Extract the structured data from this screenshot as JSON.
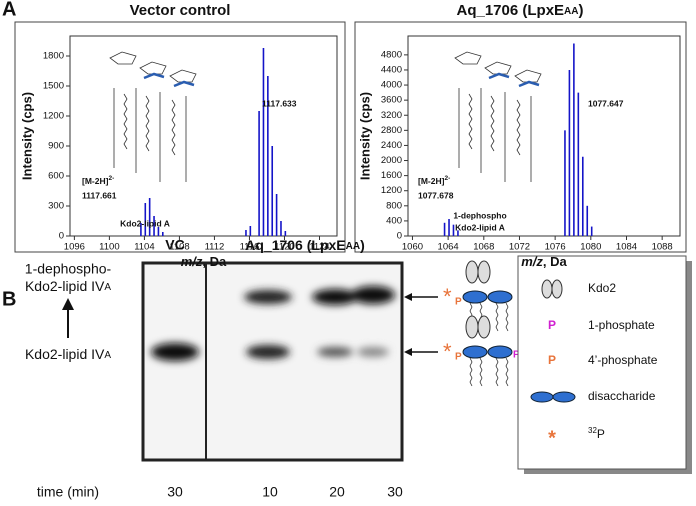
{
  "panels": [
    "A",
    "B"
  ],
  "chart_data": [
    {
      "type": "stick",
      "title": [
        "Vector control"
      ],
      "color": "#1414c8",
      "x": [
        1103.6,
        1104.1,
        1104.6,
        1105.1,
        1105.6,
        1106.1,
        1115.6,
        1116.1,
        1117.1,
        1117.6,
        1118.1,
        1118.6,
        1119.1,
        1119.6,
        1120.1
      ],
      "values": [
        130,
        330,
        380,
        200,
        90,
        40,
        60,
        100,
        1250,
        1880,
        1600,
        900,
        420,
        150,
        50
      ],
      "xlim": [
        1095.5,
        1126
      ],
      "ylim": [
        0,
        2000
      ],
      "xticks": [
        1096,
        1100,
        1104,
        1108,
        1112,
        1116,
        1120,
        1124
      ],
      "yticks": [
        0,
        300,
        600,
        900,
        1200,
        1500,
        1800
      ],
      "ylabel": "Intensity (cps)",
      "xlabel": [
        "m/z",
        ", Da"
      ],
      "annotations": [
        "1117.633",
        "[M-2H]",
        "2-",
        "1117.661",
        "Kdo2-lipid A"
      ]
    },
    {
      "type": "stick",
      "title": [
        "Aq_1706 (LpxE",
        "AA",
        ")"
      ],
      "color": "#1414c8",
      "x": [
        1063.6,
        1064.1,
        1064.6,
        1065.1,
        1077.1,
        1077.6,
        1078.1,
        1078.6,
        1079.1,
        1079.6,
        1080.1
      ],
      "values": [
        350,
        450,
        300,
        150,
        2800,
        4400,
        5100,
        3800,
        2100,
        800,
        250
      ],
      "xlim": [
        1059.5,
        1090
      ],
      "ylim": [
        0,
        5300
      ],
      "xticks": [
        1060,
        1064,
        1068,
        1072,
        1076,
        1080,
        1084,
        1088
      ],
      "yticks": [
        0,
        400,
        800,
        1200,
        1600,
        2000,
        2400,
        2800,
        3200,
        3600,
        4000,
        4400,
        4800
      ],
      "ylabel": "Intensity (cps)",
      "xlabel": [
        "m/z",
        ", Da"
      ],
      "annotations": [
        "1077.647",
        "[M-2H]",
        "2-",
        "1077.678",
        "1-dephospho",
        "Kdo2-lipid A"
      ]
    }
  ],
  "panel_b": {
    "lane_label": "VC",
    "group_label": [
      "Aq_1706 (LpxE",
      "AA",
      ")"
    ],
    "product": [
      "1-dephospho-",
      "Kdo2-lipid IV",
      "A"
    ],
    "substrate": [
      "Kdo2-lipid IV",
      "A"
    ],
    "time_label": "time (min)",
    "times": [
      "30",
      "10",
      "20",
      "30"
    ],
    "structure_top": [
      "*",
      "P"
    ],
    "structure_bottom": [
      "*",
      "P",
      "P"
    ],
    "legend": [
      {
        "label": [
          "Kdo2"
        ]
      },
      {
        "symbol": "P",
        "label": [
          "1-phosphate"
        ]
      },
      {
        "symbol": "P",
        "label": [
          "4’-phosphate"
        ]
      },
      {
        "label": [
          "disaccharide"
        ]
      },
      {
        "symbol": "*",
        "label": [
          "32",
          "P"
        ]
      }
    ]
  }
}
